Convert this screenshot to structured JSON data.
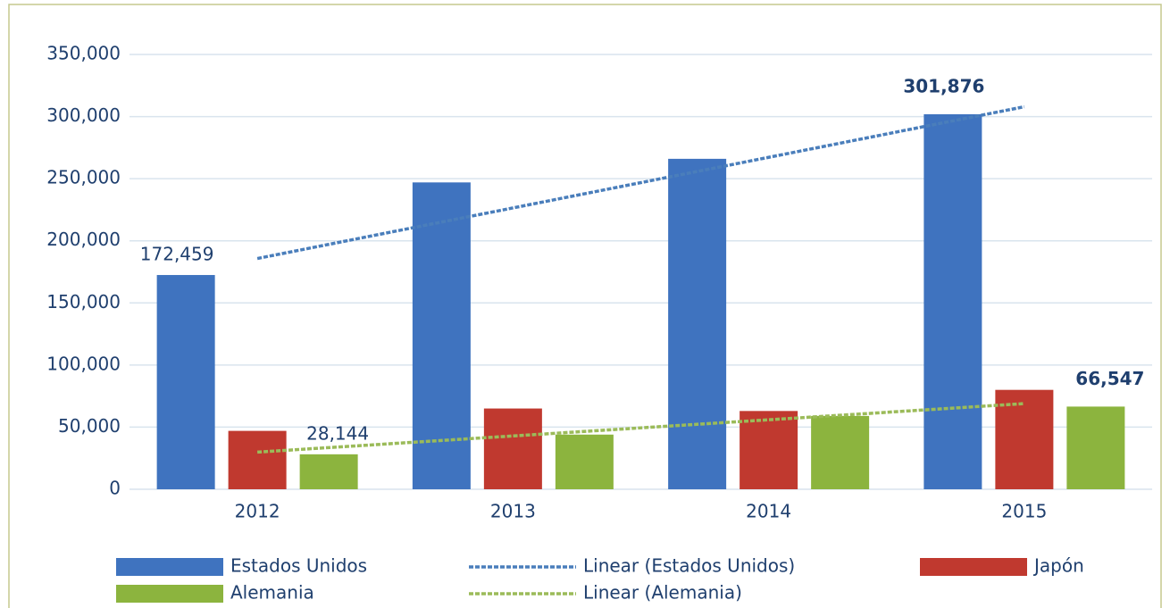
{
  "chart_data": {
    "type": "bar",
    "categories": [
      "2012",
      "2013",
      "2014",
      "2015"
    ],
    "series": [
      {
        "name": "Estados Unidos",
        "color": "#3f73bf",
        "values": [
          172459,
          247000,
          266000,
          301876
        ],
        "value_labels": [
          "172,459",
          null,
          null,
          "301,876"
        ],
        "trendline": {
          "name": "Linear (Estados Unidos)",
          "color": "#4a7ebb"
        }
      },
      {
        "name": "Japón",
        "color": "#c0392f",
        "values": [
          47000,
          65000,
          63000,
          80000
        ]
      },
      {
        "name": "Alemania",
        "color": "#8cb43e",
        "values": [
          28144,
          44000,
          59000,
          66547
        ],
        "value_labels": [
          "28,144",
          null,
          null,
          "66,547"
        ],
        "trendline": {
          "name": "Linear (Alemania)",
          "color": "#9bbb59"
        }
      }
    ],
    "ylim": [
      0,
      350000
    ],
    "yticks": [
      0,
      {
        "value": 50000,
        "label": "50,000"
      },
      {
        "value": 100000,
        "label": "100,000"
      },
      {
        "value": 150000,
        "label": "150,000"
      },
      {
        "value": 200000,
        "label": "200,000"
      },
      {
        "value": 250000,
        "label": "250,000"
      },
      {
        "value": 300000,
        "label": "300,000"
      },
      {
        "value": 350000,
        "label": "350,000"
      }
    ],
    "grid": true
  }
}
